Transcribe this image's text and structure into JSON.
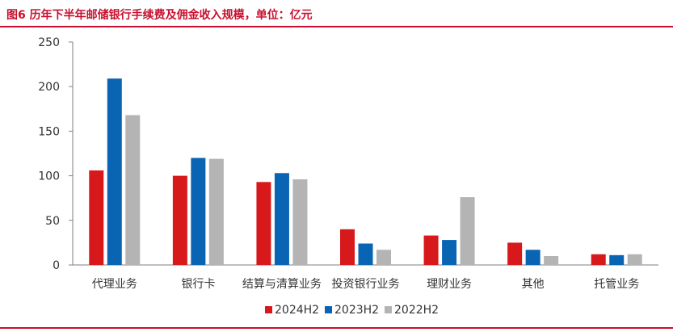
{
  "title": "图6  历年下半年邮储银行手续费及佣金收入规模，单位：亿元",
  "chart_data": {
    "type": "bar",
    "title": "历年下半年邮储银行手续费及佣金收入规模，单位：亿元",
    "categories": [
      "代理业务",
      "银行卡",
      "结算与清算业务",
      "投资银行业务",
      "理财业务",
      "其他",
      "托管业务"
    ],
    "series": [
      {
        "name": "2024H2",
        "color": "#d7191c",
        "values": [
          106,
          100,
          93,
          40,
          33,
          25,
          12
        ]
      },
      {
        "name": "2023H2",
        "color": "#0a64b4",
        "values": [
          209,
          120,
          103,
          24,
          28,
          17,
          11
        ]
      },
      {
        "name": "2022H2",
        "color": "#b4b4b4",
        "values": [
          168,
          119,
          96,
          17,
          76,
          10,
          12
        ]
      }
    ],
    "yticks": [
      0,
      50,
      100,
      150,
      200,
      250
    ],
    "ylim": [
      0,
      250
    ],
    "grid": false,
    "legend": "bottom"
  }
}
